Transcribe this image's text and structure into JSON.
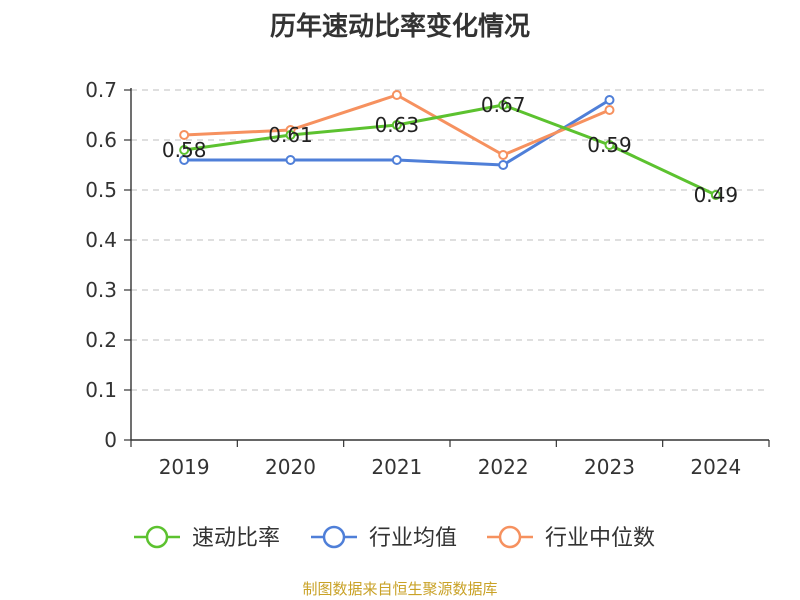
{
  "chart_data": {
    "type": "line",
    "title": "历年速动比率变化情况",
    "categories": [
      "2019",
      "2020",
      "2021",
      "2022",
      "2023",
      "2024"
    ],
    "ylim": [
      0,
      0.7
    ],
    "yticks": [
      0,
      0.1,
      0.2,
      0.3,
      0.4,
      0.5,
      0.6,
      0.7
    ],
    "ytick_labels": [
      "0",
      "0.1",
      "0.2",
      "0.3",
      "0.4",
      "0.5",
      "0.6",
      "0.7"
    ],
    "grid": true,
    "legend_position": "bottom",
    "series": [
      {
        "name": "速动比率",
        "color": "#5cc22f",
        "values": [
          0.58,
          0.61,
          0.63,
          0.67,
          0.59,
          0.49
        ],
        "labels": [
          "0.58",
          "0.61",
          "0.63",
          "0.67",
          "0.59",
          "0.49"
        ]
      },
      {
        "name": "行业均值",
        "color": "#4f7fd8",
        "values": [
          0.56,
          0.56,
          0.56,
          0.55,
          0.68,
          null
        ]
      },
      {
        "name": "行业中位数",
        "color": "#f6915f",
        "values": [
          0.61,
          0.62,
          0.69,
          0.57,
          0.66,
          null
        ]
      }
    ]
  },
  "footer": {
    "source": "制图数据来自恒生聚源数据库"
  }
}
